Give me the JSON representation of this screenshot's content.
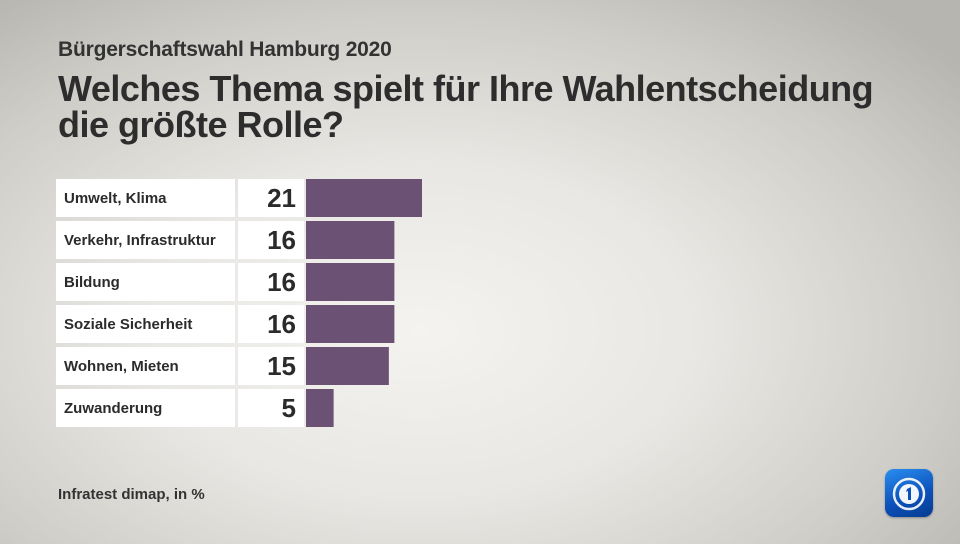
{
  "supertitle": "Bürgerschaftswahl Hamburg 2020",
  "title": "Welches Thema spielt für Ihre Wahlentscheidung die größte Rolle?",
  "footer": "Infratest dimap, in %",
  "logo_icon": "ard-tagesschau-logo-icon",
  "colors": {
    "bar": "#6b5274",
    "label_bg": "#ffffff",
    "logo": "#1f6fd6"
  },
  "chart_data": {
    "type": "bar",
    "orientation": "horizontal",
    "categories": [
      "Umwelt, Klima",
      "Verkehr, Infrastruktur",
      "Bildung",
      "Soziale Sicherheit",
      "Wohnen, Mieten",
      "Zuwanderung"
    ],
    "values": [
      21,
      16,
      16,
      16,
      15,
      5
    ],
    "unit": "%",
    "title": "Welches Thema spielt für Ihre Wahlentscheidung die größte Rolle?",
    "xlabel": "",
    "ylabel": "",
    "grid": false,
    "legend": "none"
  }
}
